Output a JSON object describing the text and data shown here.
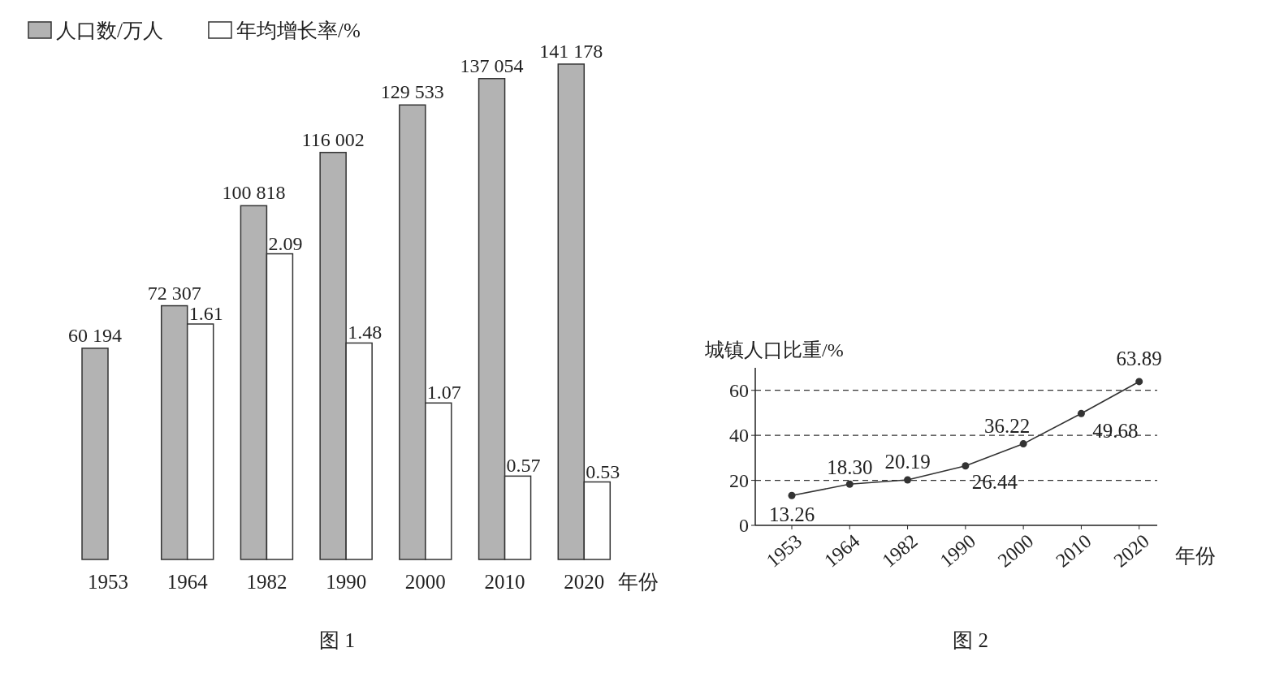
{
  "chart_data": [
    {
      "type": "bar",
      "categories": [
        "1953",
        "1964",
        "1982",
        "1990",
        "2000",
        "2010",
        "2020"
      ],
      "xlabel": "年份",
      "legend": "top",
      "annotations": [
        "图 1"
      ],
      "series": [
        {
          "name": "人口数/万人",
          "color": "#b3b3b3",
          "values": [
            60194,
            72307,
            100818,
            116002,
            129533,
            137054,
            141178
          ],
          "value_labels": [
            "60 194",
            "72 307",
            "100 818",
            "116 002",
            "129 533",
            "137 054",
            "141 178"
          ]
        },
        {
          "name": "年均增长率/%",
          "color": "#ffffff",
          "axis": "y2",
          "values": [
            null,
            1.61,
            2.09,
            1.48,
            1.07,
            0.57,
            0.53
          ],
          "value_labels": [
            null,
            "1.61",
            "2.09",
            "1.48",
            "1.07",
            "0.57",
            "0.53"
          ]
        }
      ]
    },
    {
      "type": "line",
      "categories": [
        "1953",
        "1964",
        "1982",
        "1990",
        "2000",
        "2010",
        "2020"
      ],
      "xlabel": "年份",
      "ylabel": "城镇人口比重/%",
      "ylim": [
        0,
        70
      ],
      "yticks": [
        0,
        20,
        40,
        60
      ],
      "grid": "y",
      "marker": "circle",
      "line_style": "solid",
      "annotations": [
        "图 2"
      ],
      "series": [
        {
          "color": "#333333",
          "values": [
            13.26,
            18.3,
            20.19,
            26.44,
            36.22,
            49.68,
            63.89
          ],
          "value_labels": [
            "13.26",
            "18.30",
            "20.19",
            "26.44",
            "36.22",
            "49.68",
            "63.89"
          ]
        }
      ]
    }
  ]
}
